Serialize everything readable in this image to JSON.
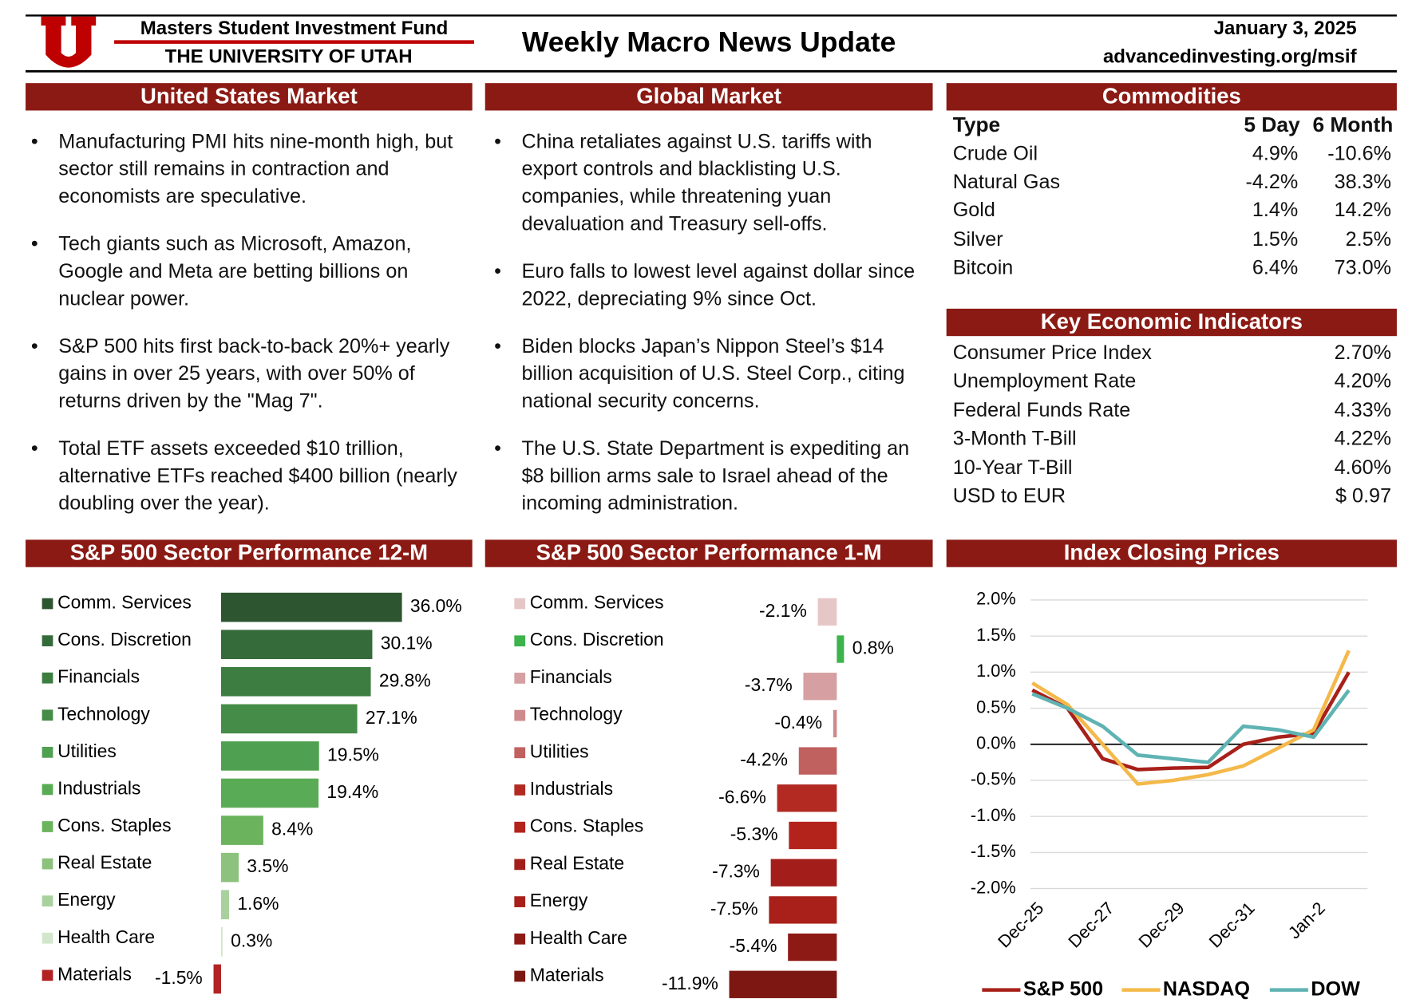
{
  "header": {
    "org": "Masters Student Investment Fund",
    "university": "THE UNIVERSITY OF UTAH",
    "title": "Weekly Macro News Update",
    "date": "January 3, 2025",
    "url": "advancedinvesting.org/msif"
  },
  "us_market": {
    "title": "United States Market",
    "bullets": [
      "Manufacturing PMI hits nine-month high, but sector still remains in contraction and economists are speculative.",
      "Tech giants such as Microsoft, Amazon, Google and Meta are betting billions on nuclear power.",
      "S&P 500 hits first back-to-back 20%+ yearly gains in over 25 years, with over 50% of returns driven by the \"Mag 7\".",
      "Total ETF assets exceeded $10 trillion, alternative ETFs reached $400 billion (nearly doubling over the year)."
    ]
  },
  "global_market": {
    "title": "Global Market",
    "bullets": [
      "China retaliates against U.S. tariffs with export controls and blacklisting U.S. companies, while threatening yuan devaluation and Treasury sell-offs.",
      "Euro falls to lowest level against dollar since 2022, depreciating 9% since Oct.",
      "Biden blocks Japan’s Nippon Steel’s $14 billion acquisition of U.S. Steel Corp., citing national security concerns.",
      "The U.S. State Department is expediting an $8 billion arms sale to Israel ahead of the incoming administration."
    ]
  },
  "commodities": {
    "title": "Commodities",
    "columns": [
      "Type",
      "5 Day",
      "6 Month"
    ],
    "rows": [
      [
        "Crude Oil",
        "4.9%",
        "-10.6%"
      ],
      [
        "Natural Gas",
        "-4.2%",
        "38.3%"
      ],
      [
        "Gold",
        "1.4%",
        "14.2%"
      ],
      [
        "Silver",
        "1.5%",
        "2.5%"
      ],
      [
        "Bitcoin",
        "6.4%",
        "73.0%"
      ]
    ]
  },
  "indicators": {
    "title": "Key Economic Indicators",
    "rows": [
      [
        "Consumer Price Index",
        "2.70%"
      ],
      [
        "Unemployment Rate",
        "4.20%"
      ],
      [
        "Federal Funds Rate",
        "4.33%"
      ],
      [
        "3-Month T-Bill",
        "4.22%"
      ],
      [
        "10-Year T-Bill",
        "4.60%"
      ],
      [
        "USD to EUR",
        "$ 0.97"
      ]
    ]
  },
  "chart_data": [
    {
      "type": "hbar",
      "title": "S&P 500 Sector Performance 12-M",
      "categories": [
        "Comm. Services",
        "Cons. Discretion",
        "Financials",
        "Technology",
        "Utilities",
        "Industrials",
        "Cons. Staples",
        "Real Estate",
        "Energy",
        "Health Care",
        "Materials"
      ],
      "values": [
        36.0,
        30.1,
        29.8,
        27.1,
        19.5,
        19.4,
        8.4,
        3.5,
        1.6,
        0.3,
        -1.5
      ],
      "value_labels": [
        "36.0%",
        "30.1%",
        "29.8%",
        "27.1%",
        "19.5%",
        "19.4%",
        "8.4%",
        "3.5%",
        "1.6%",
        "0.3%",
        "-1.5%"
      ],
      "colors": [
        "#2d5530",
        "#356b3a",
        "#3d7d41",
        "#448c47",
        "#4fa050",
        "#5aab55",
        "#6cb35e",
        "#8cc27e",
        "#a9d19e",
        "#d2e6cc",
        "#b22222"
      ]
    },
    {
      "type": "hbar",
      "title": "S&P 500 Sector Performance 1-M",
      "categories": [
        "Comm. Services",
        "Cons. Discretion",
        "Financials",
        "Technology",
        "Utilities",
        "Industrials",
        "Cons. Staples",
        "Real Estate",
        "Energy",
        "Health Care",
        "Materials"
      ],
      "values": [
        -2.1,
        0.8,
        -3.7,
        -0.4,
        -4.2,
        -6.6,
        -5.3,
        -7.3,
        -7.5,
        -5.4,
        -11.9
      ],
      "value_labels": [
        "-2.1%",
        "0.8%",
        "-3.7%",
        "-0.4%",
        "-4.2%",
        "-6.6%",
        "-5.3%",
        "-7.3%",
        "-7.5%",
        "-5.4%",
        "-11.9%"
      ],
      "colors": [
        "#e6c7c8",
        "#3cb44b",
        "#d6a0a2",
        "#cf8a8c",
        "#c0605f",
        "#b22a22",
        "#b3231c",
        "#a31e1a",
        "#a82019",
        "#8e1a16",
        "#7d1712"
      ]
    },
    {
      "type": "line",
      "title": "Index Closing Prices",
      "categories": [
        "Dec-25",
        null,
        "Dec-27",
        null,
        "Dec-29",
        null,
        "Dec-31",
        null,
        "Jan-2",
        null
      ],
      "series": [
        {
          "name": "S&P 500",
          "color": "#a8201a",
          "values": [
            0.75,
            0.5,
            -0.2,
            -0.35,
            -0.33,
            -0.32,
            0.0,
            0.1,
            0.15,
            1.0
          ]
        },
        {
          "name": "NASDAQ",
          "color": "#f4b94a",
          "values": [
            0.85,
            0.55,
            0.0,
            -0.55,
            -0.5,
            -0.42,
            -0.3,
            -0.05,
            0.2,
            1.3
          ]
        },
        {
          "name": "DOW",
          "color": "#5fb3b3",
          "values": [
            0.7,
            0.5,
            0.25,
            -0.15,
            -0.2,
            -0.25,
            0.25,
            0.2,
            0.1,
            0.75
          ]
        }
      ],
      "ylim": [
        -2.0,
        2.0
      ],
      "yticks": [
        {
          "value": -2.0,
          "label": "-2.0%"
        },
        {
          "value": -1.5,
          "label": "-1.5%"
        },
        {
          "value": -1.0,
          "label": "-1.0%"
        },
        {
          "value": -0.5,
          "label": "-0.5%"
        },
        {
          "value": 0.0,
          "label": "0.0%"
        },
        {
          "value": 0.5,
          "label": "0.5%"
        },
        {
          "value": 1.0,
          "label": "1.0%"
        },
        {
          "value": 1.5,
          "label": "1.5%"
        },
        {
          "value": 2.0,
          "label": "2.0%"
        }
      ],
      "grid": true,
      "legend": "bottom"
    }
  ]
}
